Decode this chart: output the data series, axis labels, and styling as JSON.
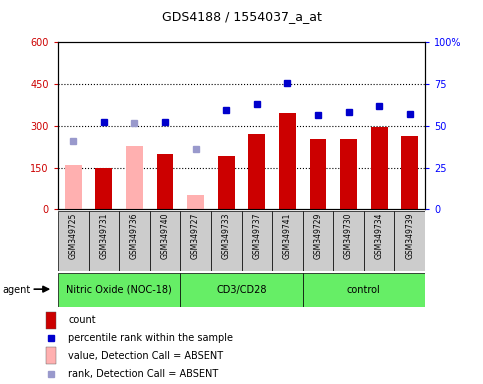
{
  "title": "GDS4188 / 1554037_a_at",
  "samples": [
    "GSM349725",
    "GSM349731",
    "GSM349736",
    "GSM349740",
    "GSM349727",
    "GSM349733",
    "GSM349737",
    "GSM349741",
    "GSM349729",
    "GSM349730",
    "GSM349734",
    "GSM349739"
  ],
  "bar_values": [
    160,
    148,
    228,
    200,
    50,
    192,
    270,
    345,
    252,
    252,
    295,
    262
  ],
  "bar_absent": [
    true,
    false,
    true,
    false,
    true,
    false,
    false,
    false,
    false,
    false,
    false,
    false
  ],
  "rank_values": [
    245,
    315,
    310,
    312,
    218,
    358,
    378,
    452,
    338,
    348,
    372,
    342
  ],
  "rank_absent": [
    true,
    false,
    true,
    false,
    true,
    false,
    false,
    false,
    false,
    false,
    false,
    false
  ],
  "ylim_left": [
    0,
    600
  ],
  "ylim_right": [
    0,
    100
  ],
  "yticks_left": [
    0,
    150,
    300,
    450,
    600
  ],
  "yticks_right": [
    0,
    25,
    50,
    75,
    100
  ],
  "ytick_labels_left": [
    "0",
    "150",
    "300",
    "450",
    "600"
  ],
  "ytick_labels_right": [
    "0",
    "25",
    "50",
    "75",
    "100%"
  ],
  "bar_color_present": "#cc0000",
  "bar_color_absent": "#ffb0b0",
  "rank_color_present": "#0000cc",
  "rank_color_absent": "#9999cc",
  "bar_width": 0.55,
  "groups": [
    {
      "label": "Nitric Oxide (NOC-18)",
      "start": 0,
      "end": 3
    },
    {
      "label": "CD3/CD28",
      "start": 4,
      "end": 7
    },
    {
      "label": "control",
      "start": 8,
      "end": 11
    }
  ],
  "group_color": "#66ee66",
  "sample_bg_color": "#cccccc",
  "agent_label": "agent",
  "legend_items": [
    {
      "label": "count",
      "color": "#cc0000",
      "type": "bar"
    },
    {
      "label": "percentile rank within the sample",
      "color": "#0000cc",
      "type": "square"
    },
    {
      "label": "value, Detection Call = ABSENT",
      "color": "#ffb0b0",
      "type": "bar"
    },
    {
      "label": "rank, Detection Call = ABSENT",
      "color": "#9999cc",
      "type": "square"
    }
  ]
}
